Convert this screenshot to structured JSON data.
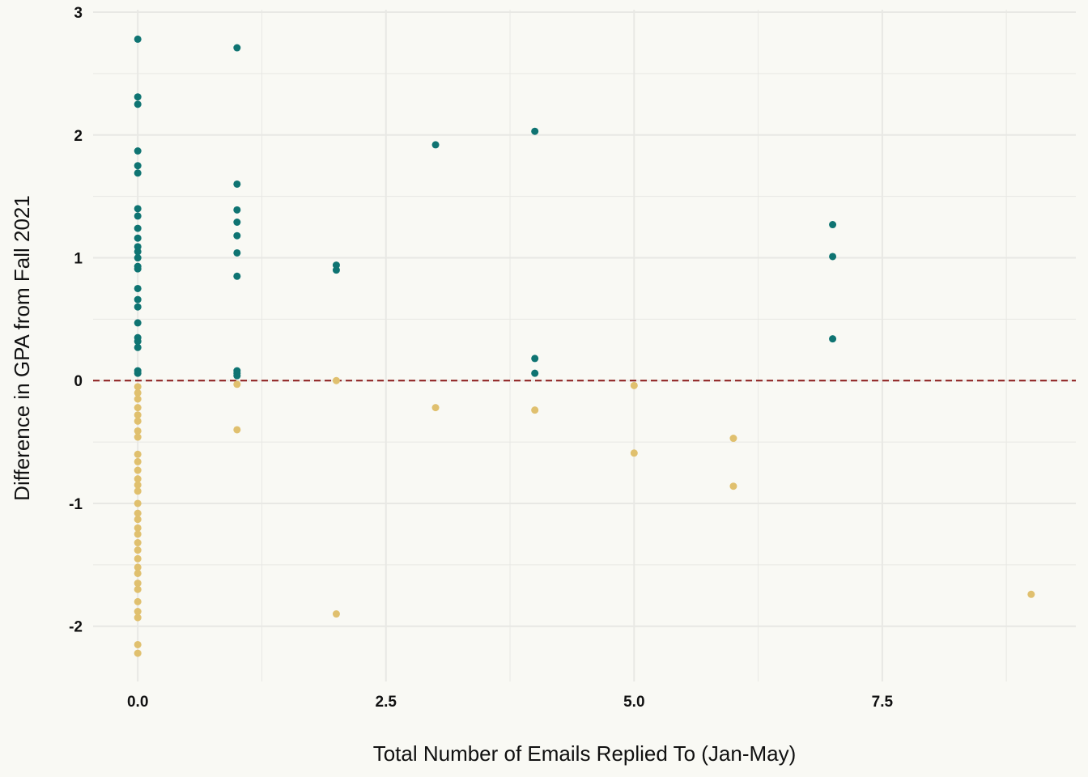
{
  "chart_data": {
    "type": "scatter",
    "title": "",
    "xlabel": "Total Number of Emails Replied To (Jan-May)",
    "ylabel": "Difference in GPA from Fall 2021",
    "xlim": [
      -0.45,
      9.45
    ],
    "ylim": [
      -2.45,
      3.02
    ],
    "x_ticks": [
      0.0,
      2.5,
      5.0,
      7.5
    ],
    "x_tick_labels": [
      "0.0",
      "2.5",
      "5.0",
      "7.5"
    ],
    "y_ticks": [
      -2,
      -1,
      0,
      1,
      2,
      3
    ],
    "y_tick_labels": [
      "-2",
      "-1",
      "0",
      "1",
      "2",
      "3"
    ],
    "grid": true,
    "legend": "none",
    "reference_line": {
      "y": 0,
      "style": "dashed",
      "color": "#8b1a1a"
    },
    "colors": {
      "positive": "#0f7472",
      "negative": "#e0c06e",
      "background": "#f9f9f4",
      "grid": "#e8e8e4"
    },
    "series": [
      {
        "points": [
          [
            0,
            2.78
          ],
          [
            0,
            2.31
          ],
          [
            0,
            2.25
          ],
          [
            0,
            1.87
          ],
          [
            0,
            1.75
          ],
          [
            0,
            1.69
          ],
          [
            0,
            1.4
          ],
          [
            0,
            1.34
          ],
          [
            0,
            1.24
          ],
          [
            0,
            1.16
          ],
          [
            0,
            1.09
          ],
          [
            0,
            1.05
          ],
          [
            0,
            1.0
          ],
          [
            0,
            0.93
          ],
          [
            0,
            0.91
          ],
          [
            0,
            0.75
          ],
          [
            0,
            0.66
          ],
          [
            0,
            0.6
          ],
          [
            0,
            0.47
          ],
          [
            0,
            0.35
          ],
          [
            0,
            0.32
          ],
          [
            0,
            0.27
          ],
          [
            0,
            0.08
          ],
          [
            0,
            0.06
          ],
          [
            1,
            2.71
          ],
          [
            1,
            1.6
          ],
          [
            1,
            1.39
          ],
          [
            1,
            1.29
          ],
          [
            1,
            1.18
          ],
          [
            1,
            1.04
          ],
          [
            1,
            0.85
          ],
          [
            1,
            0.08
          ],
          [
            1,
            0.06
          ],
          [
            1,
            0.04
          ],
          [
            2,
            0.94
          ],
          [
            2,
            0.9
          ],
          [
            3,
            1.92
          ],
          [
            4,
            2.03
          ],
          [
            4,
            0.18
          ],
          [
            4,
            0.06
          ],
          [
            7,
            1.27
          ],
          [
            7,
            1.01
          ],
          [
            7,
            0.34
          ]
        ]
      },
      {
        "points": [
          [
            0,
            -0.05
          ],
          [
            0,
            -0.1
          ],
          [
            0,
            -0.15
          ],
          [
            0,
            -0.22
          ],
          [
            0,
            -0.28
          ],
          [
            0,
            -0.33
          ],
          [
            0,
            -0.41
          ],
          [
            0,
            -0.46
          ],
          [
            0,
            -0.6
          ],
          [
            0,
            -0.66
          ],
          [
            0,
            -0.73
          ],
          [
            0,
            -0.8
          ],
          [
            0,
            -0.85
          ],
          [
            0,
            -0.9
          ],
          [
            0,
            -1.0
          ],
          [
            0,
            -1.08
          ],
          [
            0,
            -1.13
          ],
          [
            0,
            -1.2
          ],
          [
            0,
            -1.25
          ],
          [
            0,
            -1.32
          ],
          [
            0,
            -1.38
          ],
          [
            0,
            -1.45
          ],
          [
            0,
            -1.52
          ],
          [
            0,
            -1.57
          ],
          [
            0,
            -1.65
          ],
          [
            0,
            -1.7
          ],
          [
            0,
            -1.8
          ],
          [
            0,
            -1.88
          ],
          [
            0,
            -1.93
          ],
          [
            0,
            -2.15
          ],
          [
            0,
            -2.22
          ],
          [
            1,
            -0.03
          ],
          [
            1,
            -0.4
          ],
          [
            2,
            0.0
          ],
          [
            2,
            -1.9
          ],
          [
            3,
            -0.22
          ],
          [
            4,
            -0.24
          ],
          [
            5,
            -0.04
          ],
          [
            5,
            -0.59
          ],
          [
            6,
            -0.47
          ],
          [
            6,
            -0.86
          ],
          [
            9,
            -1.74
          ]
        ]
      }
    ]
  }
}
